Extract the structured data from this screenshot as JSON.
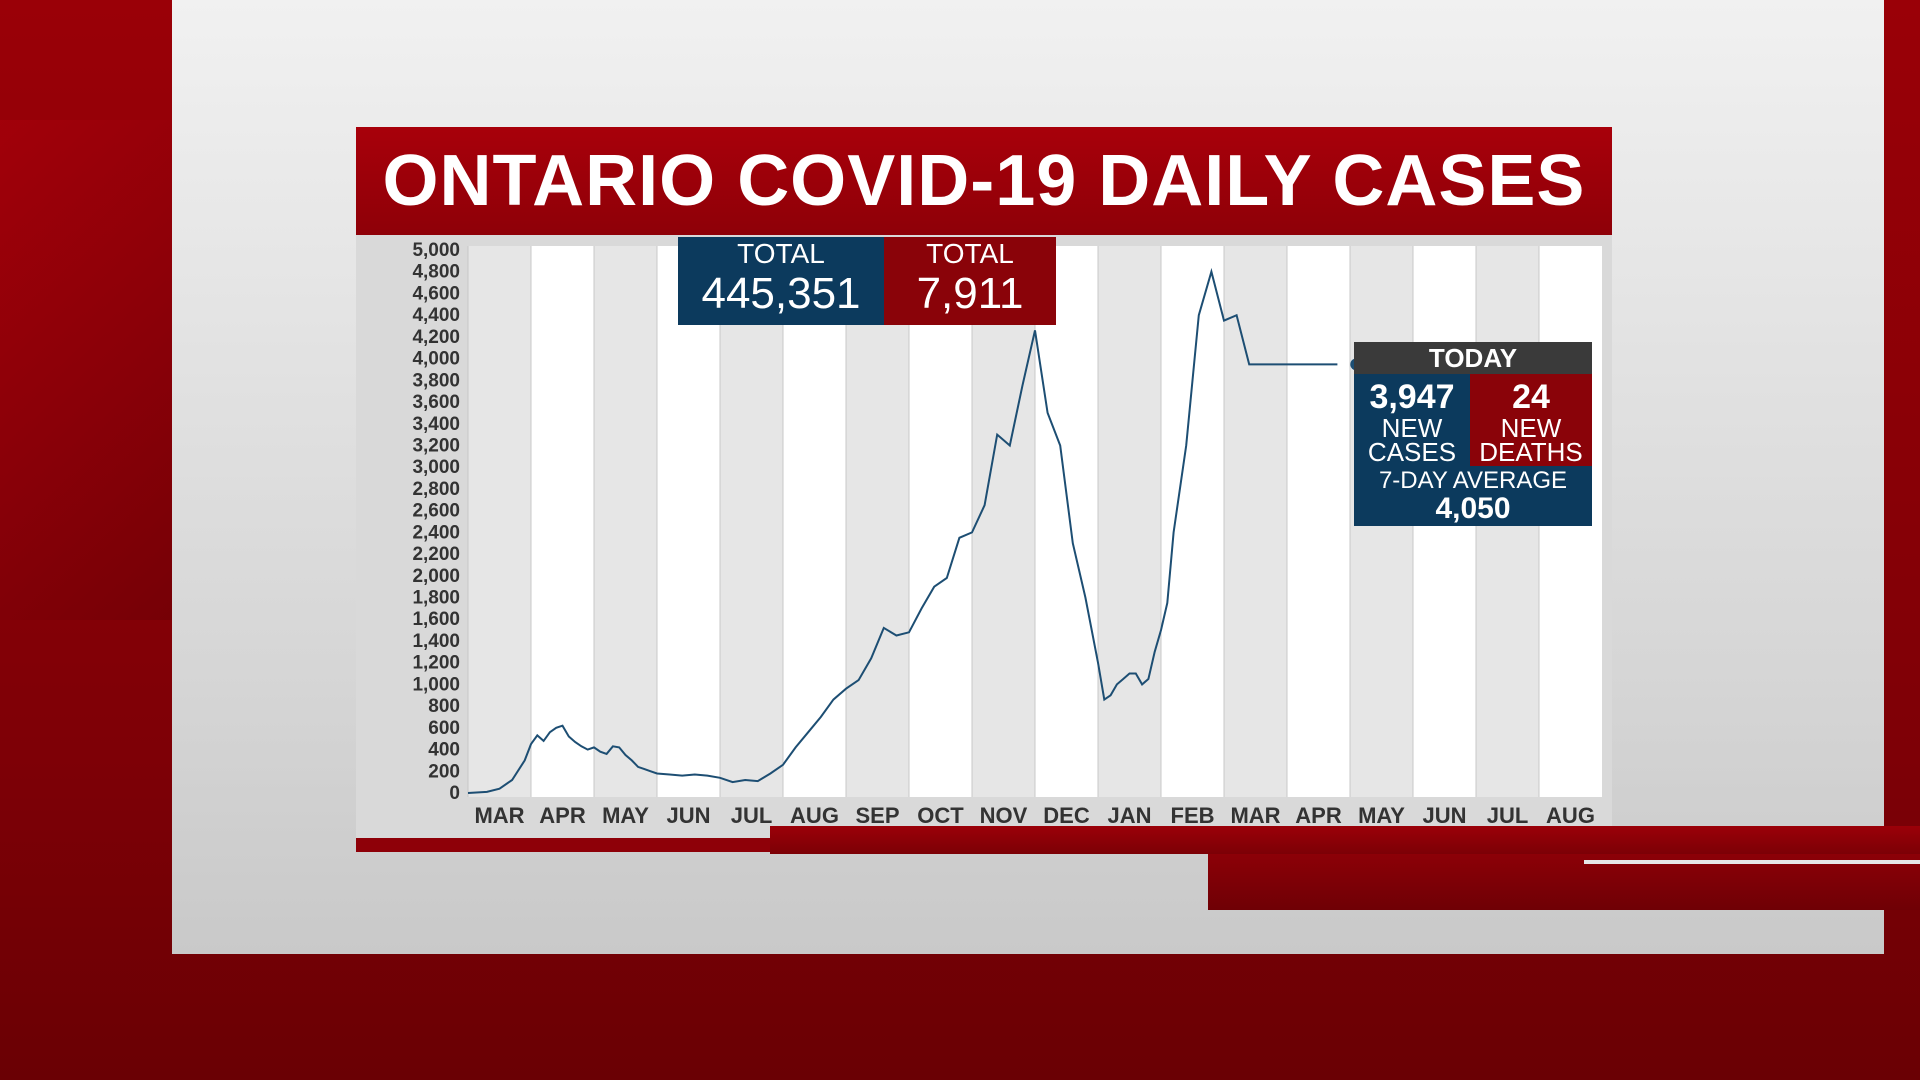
{
  "title": "ONTARIO COVID-19 DAILY CASES",
  "totals": {
    "cases_label": "TOTAL",
    "cases_value": "445,351",
    "deaths_label": "TOTAL",
    "deaths_value": "7,911"
  },
  "today": {
    "header": "TODAY",
    "new_cases_value": "3,947",
    "new_cases_line1": "NEW",
    "new_cases_line2": "CASES",
    "new_deaths_value": "24",
    "new_deaths_line1": "NEW",
    "new_deaths_line2": "DEATHS",
    "avg_label": "7-DAY AVERAGE",
    "avg_value": "4,050"
  },
  "colors": {
    "brand_red": "#8e0008",
    "navy": "#0c3a5d",
    "line": "#1d4e73"
  },
  "chart_data": {
    "type": "line",
    "title": "ONTARIO COVID-19 DAILY CASES",
    "xlabel": "",
    "ylabel": "",
    "ylim": [
      0,
      5000
    ],
    "y_ticks": [
      "0",
      "200",
      "400",
      "600",
      "800",
      "1,000",
      "1,200",
      "1,400",
      "1,600",
      "1,800",
      "2,000",
      "2,200",
      "2,400",
      "2,600",
      "2,800",
      "3,000",
      "3,200",
      "3,400",
      "3,600",
      "3,800",
      "4,000",
      "4,200",
      "4,400",
      "4,600",
      "4,800",
      "5,000"
    ],
    "months": [
      "MAR",
      "APR",
      "MAY",
      "JUN",
      "JUL",
      "AUG",
      "SEP",
      "OCT",
      "NOV",
      "DEC",
      "JAN",
      "FEB",
      "MAR",
      "APR",
      "MAY",
      "JUN",
      "JUL",
      "AUG"
    ],
    "grid": true,
    "series": [
      {
        "x_month_index": [
          0.0,
          0.3,
          0.5,
          0.7,
          0.9,
          1.0,
          1.1,
          1.2,
          1.3,
          1.4,
          1.5,
          1.6,
          1.7,
          1.8,
          1.9,
          2.0,
          2.1,
          2.2,
          2.3,
          2.4,
          2.5,
          2.6,
          2.7,
          2.8,
          2.9,
          3.0,
          3.2,
          3.4,
          3.6,
          3.8,
          4.0,
          4.2,
          4.4,
          4.6,
          4.8,
          5.0,
          5.2,
          5.4,
          5.6,
          5.8,
          6.0,
          6.2,
          6.4,
          6.6,
          6.8,
          7.0,
          7.2,
          7.4,
          7.6,
          7.8,
          8.0,
          8.2,
          8.4,
          8.6,
          8.8,
          9.0,
          9.2,
          9.4,
          9.6,
          9.8,
          9.9,
          10.0,
          10.1,
          10.2,
          10.3,
          10.4,
          10.5,
          10.6,
          10.7,
          10.8,
          10.9,
          11.0,
          11.1,
          11.2,
          11.4,
          11.6,
          11.8,
          12.0,
          12.2,
          12.4,
          12.6,
          12.8,
          13.0,
          13.1,
          13.2,
          13.3,
          13.4,
          13.5,
          13.6,
          13.7,
          13.8,
          13.9,
          14.0,
          14.1
        ],
        "values": [
          0,
          10,
          40,
          120,
          300,
          450,
          530,
          480,
          560,
          600,
          620,
          520,
          470,
          430,
          400,
          420,
          380,
          360,
          430,
          420,
          350,
          300,
          240,
          220,
          200,
          180,
          170,
          160,
          170,
          160,
          140,
          100,
          120,
          110,
          180,
          260,
          420,
          560,
          700,
          860,
          960,
          1040,
          1240,
          1520,
          1450,
          1480,
          1700,
          1900,
          1980,
          2350,
          2400,
          2650,
          3300,
          3200,
          3750,
          4260,
          3500,
          3200,
          2300,
          1800,
          1500,
          1200,
          860,
          900,
          1000,
          1050,
          1100,
          1100,
          1000,
          1050,
          1300,
          1500,
          1750,
          2400,
          3200,
          4400,
          4800,
          4350,
          4400,
          3947,
          3947,
          3947,
          3947,
          3947,
          3947,
          3947,
          3947,
          3947,
          3947,
          3947,
          3947,
          3947,
          3947,
          3947
        ],
        "note": ""
      }
    ]
  }
}
